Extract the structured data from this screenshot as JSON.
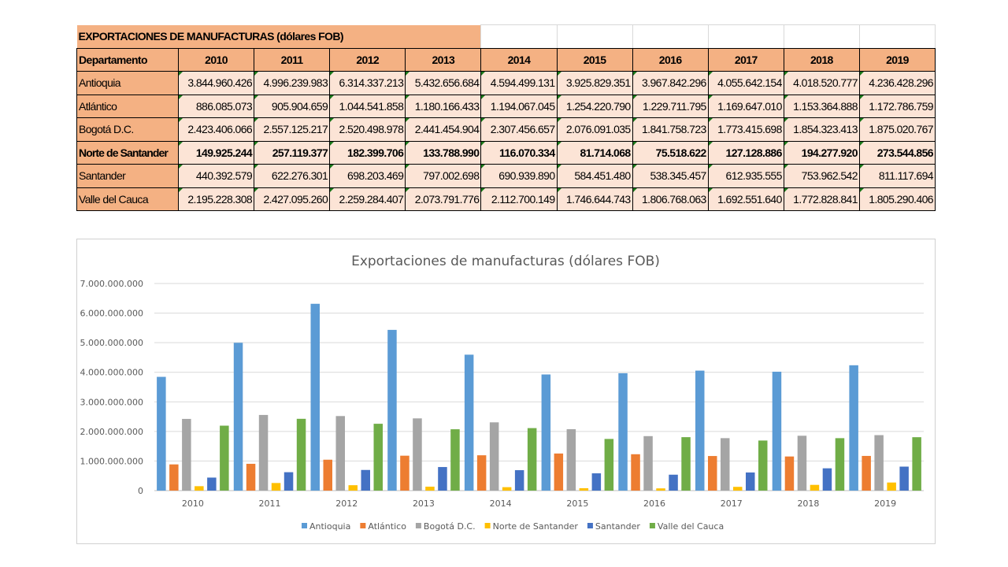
{
  "table": {
    "title": "EXPORTACIONES DE MANUFACTURAS (dólares FOB)",
    "header": [
      "Departamento",
      "2010",
      "2011",
      "2012",
      "2013",
      "2014",
      "2015",
      "2016",
      "2017",
      "2018",
      "2019"
    ],
    "rows": [
      {
        "label": "Antioquia",
        "bold": false,
        "values": [
          "3.844.960.426",
          "4.996.239.983",
          "6.314.337.213",
          "5.432.656.684",
          "4.594.499.131",
          "3.925.829.351",
          "3.967.842.296",
          "4.055.642.154",
          "4.018.520.777",
          "4.236.428.296"
        ]
      },
      {
        "label": "Atlántico",
        "bold": false,
        "values": [
          "886.085.073",
          "905.904.659",
          "1.044.541.858",
          "1.180.166.433",
          "1.194.067.045",
          "1.254.220.790",
          "1.229.711.795",
          "1.169.647.010",
          "1.153.364.888",
          "1.172.786.759"
        ]
      },
      {
        "label": "Bogotá D.C.",
        "bold": false,
        "values": [
          "2.423.406.066",
          "2.557.125.217",
          "2.520.498.978",
          "2.441.454.904",
          "2.307.456.657",
          "2.076.091.035",
          "1.841.758.723",
          "1.773.415.698",
          "1.854.323.413",
          "1.875.020.767"
        ]
      },
      {
        "label": "Norte de Santander",
        "bold": true,
        "values": [
          "149.925.244",
          "257.119.377",
          "182.399.706",
          "133.788.990",
          "116.070.334",
          "81.714.068",
          "75.518.622",
          "127.128.886",
          "194.277.920",
          "273.544.856"
        ]
      },
      {
        "label": "Santander",
        "bold": false,
        "values": [
          "440.392.579",
          "622.276.301",
          "698.203.469",
          "797.002.698",
          "690.939.890",
          "584.451.480",
          "538.345.457",
          "612.935.555",
          "753.962.542",
          "811.117.694"
        ]
      },
      {
        "label": "Valle del Cauca",
        "bold": false,
        "values": [
          "2.195.228.308",
          "2.427.095.260",
          "2.259.284.407",
          "2.073.791.776",
          "2.112.700.149",
          "1.746.644.743",
          "1.806.768.063",
          "1.692.551.640",
          "1.772.828.841",
          "1.805.290.406"
        ]
      }
    ]
  },
  "chart_data": {
    "type": "bar",
    "title": "Exportaciones de manufacturas (dólares FOB)",
    "categories": [
      "2010",
      "2011",
      "2012",
      "2013",
      "2014",
      "2015",
      "2016",
      "2017",
      "2018",
      "2019"
    ],
    "ylim": [
      0,
      7000000000
    ],
    "yticks": [
      "0",
      "1.000.000.000",
      "2.000.000.000",
      "3.000.000.000",
      "4.000.000.000",
      "5.000.000.000",
      "6.000.000.000",
      "7.000.000.000"
    ],
    "grid": true,
    "legend": "bottom",
    "series": [
      {
        "name": "Antioquia",
        "color": "#5B9BD5",
        "values": [
          3844960426,
          4996239983,
          6314337213,
          5432656684,
          4594499131,
          3925829351,
          3967842296,
          4055642154,
          4018520777,
          4236428296
        ]
      },
      {
        "name": "Atlántico",
        "color": "#ED7D31",
        "values": [
          886085073,
          905904659,
          1044541858,
          1180166433,
          1194067045,
          1254220790,
          1229711795,
          1169647010,
          1153364888,
          1172786759
        ]
      },
      {
        "name": "Bogotá D.C.",
        "color": "#A5A5A5",
        "values": [
          2423406066,
          2557125217,
          2520498978,
          2441454904,
          2307456657,
          2076091035,
          1841758723,
          1773415698,
          1854323413,
          1875020767
        ]
      },
      {
        "name": "Norte de Santander",
        "color": "#FFC000",
        "values": [
          149925244,
          257119377,
          182399706,
          133788990,
          116070334,
          81714068,
          75518622,
          127128886,
          194277920,
          273544856
        ]
      },
      {
        "name": "Santander",
        "color": "#4472C4",
        "values": [
          440392579,
          622276301,
          698203469,
          797002698,
          690939890,
          584451480,
          538345457,
          612935555,
          753962542,
          811117694
        ]
      },
      {
        "name": "Valle del Cauca",
        "color": "#70AD47",
        "values": [
          2195228308,
          2427095260,
          2259284407,
          2073791776,
          2112700149,
          1746644743,
          1806768063,
          1692551640,
          1772828841,
          1805290406
        ]
      }
    ]
  }
}
